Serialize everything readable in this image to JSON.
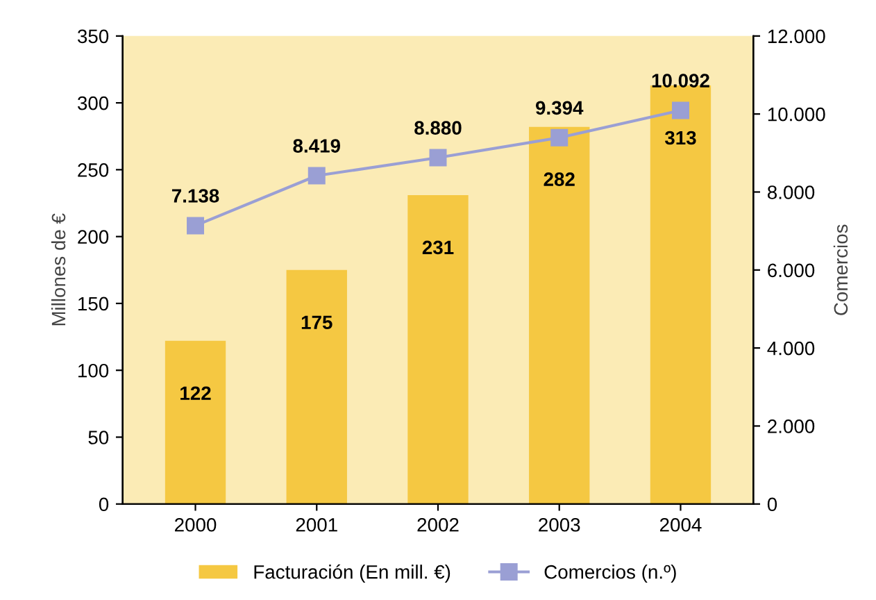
{
  "chart_data": {
    "type": "bar",
    "categories": [
      "2000",
      "2001",
      "2002",
      "2003",
      "2004"
    ],
    "ylabel": "Millones de €",
    "y2label": "Comercios",
    "ylim": [
      0,
      350
    ],
    "yticks": [
      0,
      50,
      100,
      150,
      200,
      250,
      300,
      350
    ],
    "y2lim": [
      0,
      12000
    ],
    "y2ticks": [
      0,
      {
        "value": 2000,
        "label": "2.000"
      },
      {
        "value": 4000,
        "label": "4.000"
      },
      {
        "value": 6000,
        "label": "6.000"
      },
      {
        "value": 8000,
        "label": "8.000"
      },
      {
        "value": 10000,
        "label": "10.000"
      },
      {
        "value": 12000,
        "label": "12.000"
      }
    ],
    "series": [
      {
        "name": "Facturación (En mill. €)",
        "color": "#f5c842",
        "values": [
          122,
          175,
          231,
          282,
          313
        ],
        "value_labels": [
          "122",
          "175",
          "231",
          "282",
          "313"
        ]
      },
      {
        "name": "Comercios (n.º)",
        "type": "line",
        "axis": "y2",
        "color": "#9a9fd4",
        "marker": "square",
        "values": [
          7138,
          8419,
          8880,
          9394,
          10092
        ],
        "value_labels": [
          "7.138",
          "8.419",
          "8.880",
          "9.394",
          "10.092"
        ]
      }
    ],
    "legend": "bottom",
    "grid": false
  }
}
